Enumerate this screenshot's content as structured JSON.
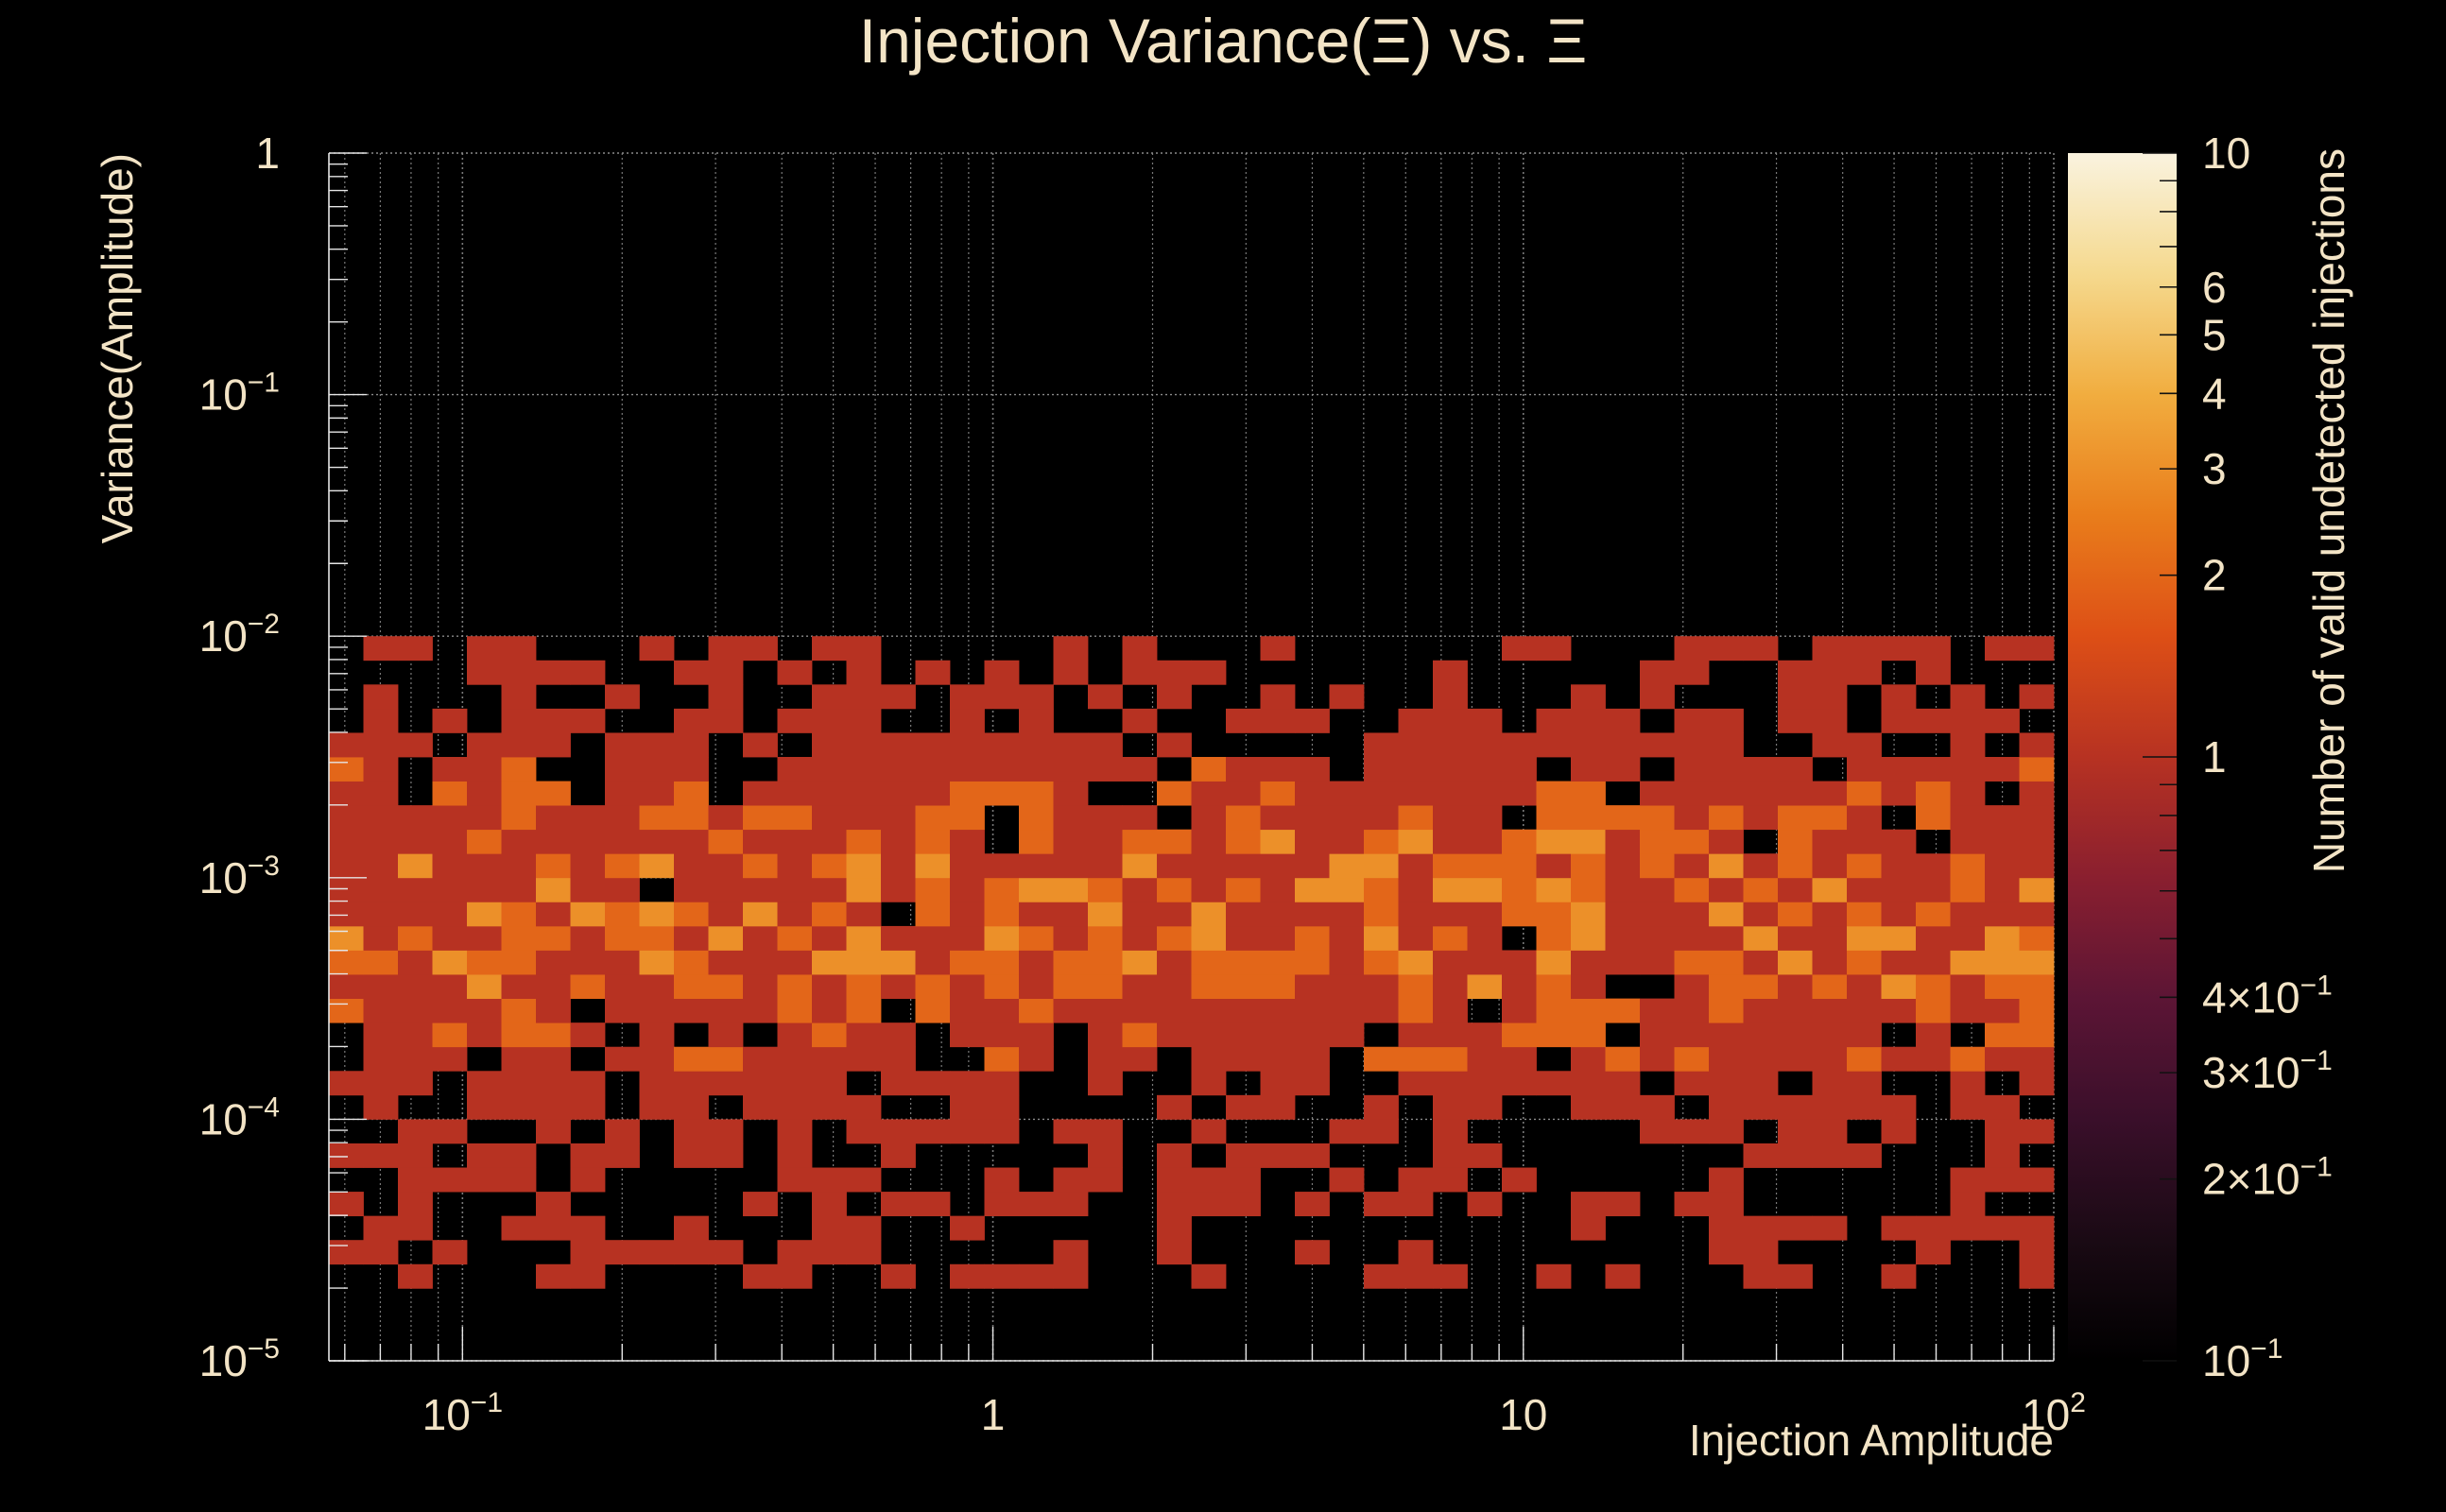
{
  "chart_data": {
    "type": "heatmap",
    "title": "Injection Variance(Ξ) vs. Ξ",
    "xlabel": "Injection Amplitude",
    "ylabel": "Variance(Amplitude)",
    "zlabel": "Number of valid undetected injections",
    "x_scale": "log",
    "y_scale": "log",
    "z_scale": "log",
    "xlim": [
      0.056,
      100
    ],
    "ylim": [
      1e-05,
      1
    ],
    "zlim": [
      0.1,
      10
    ],
    "grid": true,
    "x_ticks": [
      {
        "base": "10",
        "exp": "−1",
        "value": 0.1
      },
      {
        "base": "1",
        "exp": "",
        "value": 1
      },
      {
        "base": "10",
        "exp": "",
        "value": 10
      },
      {
        "base": "10",
        "exp": "2",
        "value": 100
      }
    ],
    "y_ticks": [
      {
        "base": "1",
        "exp": "",
        "value": 1
      },
      {
        "base": "10",
        "exp": "−1",
        "value": 0.1
      },
      {
        "base": "10",
        "exp": "−2",
        "value": 0.01
      },
      {
        "base": "10",
        "exp": "−3",
        "value": 0.001
      },
      {
        "base": "10",
        "exp": "−4",
        "value": 0.0001
      },
      {
        "base": "10",
        "exp": "−5",
        "value": 1e-05
      }
    ],
    "z_ticks": [
      {
        "label": "10",
        "exp": "",
        "value": 10
      },
      {
        "label": "6",
        "exp": "",
        "value": 6
      },
      {
        "label": "5",
        "exp": "",
        "value": 5
      },
      {
        "label": "4",
        "exp": "",
        "value": 4
      },
      {
        "label": "3",
        "exp": "",
        "value": 3
      },
      {
        "label": "2",
        "exp": "",
        "value": 2
      },
      {
        "label": "1",
        "exp": "",
        "value": 1
      },
      {
        "label": "4×10",
        "exp": "−1",
        "value": 0.4
      },
      {
        "label": "3×10",
        "exp": "−1",
        "value": 0.3
      },
      {
        "label": "2×10",
        "exp": "−1",
        "value": 0.2
      },
      {
        "label": "10",
        "exp": "−1",
        "value": 0.1
      }
    ],
    "bins": {
      "nx": 50,
      "ny": 50,
      "x_range": [
        0.056,
        100
      ],
      "y_range": [
        1e-05,
        1
      ]
    },
    "generation": {
      "seed": 20240611,
      "y_peak": 0.0007,
      "y_sigma_decades": 0.55,
      "peak_count": 2.2,
      "y_low_cut": 2e-05,
      "y_high_cut": 0.01,
      "outliers": [
        {
          "x": 22,
          "y": 0.0023,
          "count": 1
        },
        {
          "x": 90,
          "y": 0.0023,
          "count": 1
        },
        {
          "x": 2.6,
          "y": 2.2e-05,
          "count": 1
        }
      ]
    },
    "colormap": [
      "#000004",
      "#1b0c41",
      "#4a0c6b",
      "#781c6d",
      "#a52c60",
      "#cf4446",
      "#ed6925",
      "#fb9b06",
      "#f7d13d",
      "#fcffa4"
    ],
    "palette_bar": [
      "#000000",
      "#1a0a14",
      "#3a0f2a",
      "#5c1535",
      "#8a1f2f",
      "#b73222",
      "#dd4f16",
      "#e97d1b",
      "#f1ad3f",
      "#f5d98e",
      "#faf3df"
    ]
  }
}
